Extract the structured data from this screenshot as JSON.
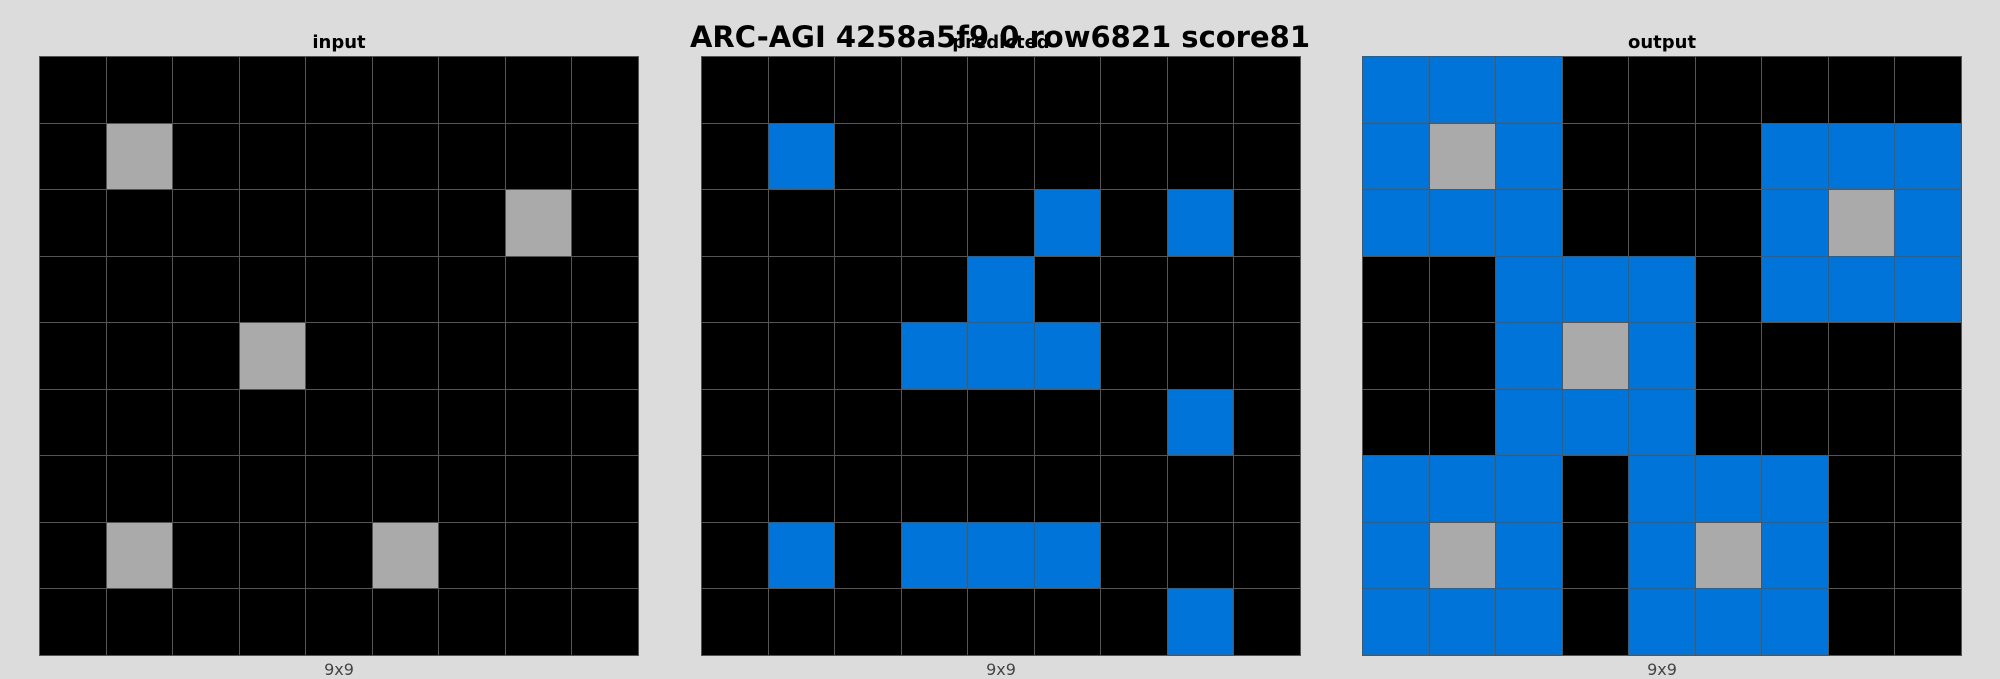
{
  "title": "ARC-AGI 4258a5f9 0 row6821 score81",
  "palette": {
    "0": "#000000",
    "1": "#0074d9",
    "5": "#aaaaaa"
  },
  "panels": [
    {
      "label": "input",
      "dims": "9x9",
      "grid": [
        [
          0,
          0,
          0,
          0,
          0,
          0,
          0,
          0,
          0
        ],
        [
          0,
          5,
          0,
          0,
          0,
          0,
          0,
          0,
          0
        ],
        [
          0,
          0,
          0,
          0,
          0,
          0,
          0,
          5,
          0
        ],
        [
          0,
          0,
          0,
          0,
          0,
          0,
          0,
          0,
          0
        ],
        [
          0,
          0,
          0,
          5,
          0,
          0,
          0,
          0,
          0
        ],
        [
          0,
          0,
          0,
          0,
          0,
          0,
          0,
          0,
          0
        ],
        [
          0,
          0,
          0,
          0,
          0,
          0,
          0,
          0,
          0
        ],
        [
          0,
          5,
          0,
          0,
          0,
          5,
          0,
          0,
          0
        ],
        [
          0,
          0,
          0,
          0,
          0,
          0,
          0,
          0,
          0
        ]
      ]
    },
    {
      "label": "predicted",
      "dims": "9x9",
      "grid": [
        [
          0,
          0,
          0,
          0,
          0,
          0,
          0,
          0,
          0
        ],
        [
          0,
          1,
          0,
          0,
          0,
          0,
          0,
          0,
          0
        ],
        [
          0,
          0,
          0,
          0,
          0,
          1,
          0,
          1,
          0
        ],
        [
          0,
          0,
          0,
          0,
          1,
          0,
          0,
          0,
          0
        ],
        [
          0,
          0,
          0,
          1,
          1,
          1,
          0,
          0,
          0
        ],
        [
          0,
          0,
          0,
          0,
          0,
          0,
          0,
          1,
          0
        ],
        [
          0,
          0,
          0,
          0,
          0,
          0,
          0,
          0,
          0
        ],
        [
          0,
          1,
          0,
          1,
          1,
          1,
          0,
          0,
          0
        ],
        [
          0,
          0,
          0,
          0,
          0,
          0,
          0,
          1,
          0
        ]
      ]
    },
    {
      "label": "output",
      "dims": "9x9",
      "grid": [
        [
          1,
          1,
          1,
          0,
          0,
          0,
          0,
          0,
          0
        ],
        [
          1,
          5,
          1,
          0,
          0,
          0,
          1,
          1,
          1
        ],
        [
          1,
          1,
          1,
          0,
          0,
          0,
          1,
          5,
          1
        ],
        [
          0,
          0,
          1,
          1,
          1,
          0,
          1,
          1,
          1
        ],
        [
          0,
          0,
          1,
          5,
          1,
          0,
          0,
          0,
          0
        ],
        [
          0,
          0,
          1,
          1,
          1,
          0,
          0,
          0,
          0
        ],
        [
          1,
          1,
          1,
          0,
          1,
          1,
          1,
          0,
          0
        ],
        [
          1,
          5,
          1,
          0,
          1,
          5,
          1,
          0,
          0
        ],
        [
          1,
          1,
          1,
          0,
          1,
          1,
          1,
          0,
          0
        ]
      ]
    }
  ]
}
